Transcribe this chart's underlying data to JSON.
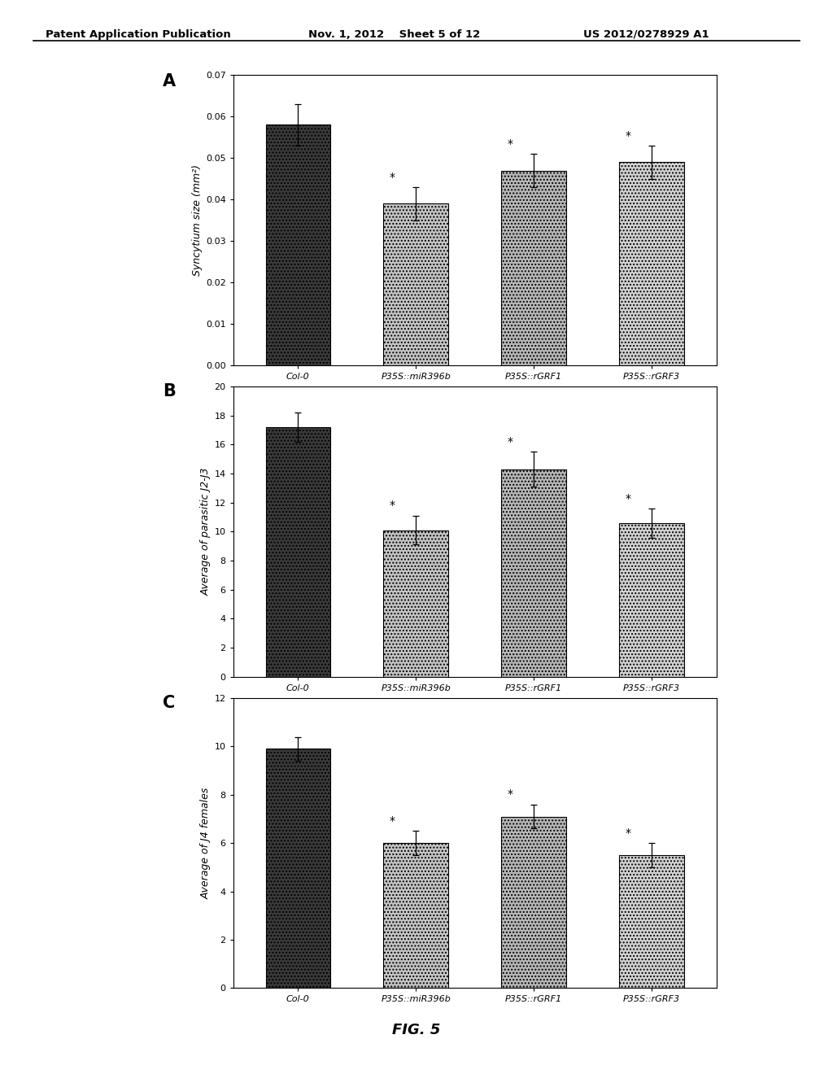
{
  "panel_A": {
    "label": "A",
    "categories": [
      "Col-0",
      "P35S::miR396b",
      "P35S::rGRF1",
      "P35S::rGRF3"
    ],
    "values": [
      0.058,
      0.039,
      0.047,
      0.049
    ],
    "errors": [
      0.005,
      0.004,
      0.004,
      0.004
    ],
    "ylabel": "Syncytium size (mm²)",
    "ylim": [
      0,
      0.07
    ],
    "yticks": [
      0,
      0.01,
      0.02,
      0.03,
      0.04,
      0.05,
      0.06,
      0.07
    ],
    "sig": [
      false,
      true,
      true,
      true
    ]
  },
  "panel_B": {
    "label": "B",
    "categories": [
      "Col-0",
      "P35S::miR396b",
      "P35S::rGRF1",
      "P35S::rGRF3"
    ],
    "values": [
      17.2,
      10.1,
      14.3,
      10.6
    ],
    "errors": [
      1.0,
      1.0,
      1.2,
      1.0
    ],
    "ylabel": "Average of parasitic J2-J3",
    "ylim": [
      0,
      20
    ],
    "yticks": [
      0,
      2,
      4,
      6,
      8,
      10,
      12,
      14,
      16,
      18,
      20
    ],
    "sig": [
      false,
      true,
      true,
      true
    ]
  },
  "panel_C": {
    "label": "C",
    "categories": [
      "Col-0",
      "P35S::miR396b",
      "P35S::rGRF1",
      "P35S::rGRF3"
    ],
    "values": [
      9.9,
      6.0,
      7.1,
      5.5
    ],
    "errors": [
      0.5,
      0.5,
      0.5,
      0.5
    ],
    "ylabel": "Average of J4 females",
    "ylim": [
      0,
      12
    ],
    "yticks": [
      0,
      2,
      4,
      6,
      8,
      10,
      12
    ],
    "sig": [
      false,
      true,
      true,
      true
    ]
  },
  "figure_caption": "FIG. 5",
  "header_left": "Patent Application Publication",
  "header_mid": "Nov. 1, 2012    Sheet 5 of 12",
  "header_right": "US 2012/0278929 A1",
  "background_color": "#ffffff",
  "bar_edgecolor": "#000000",
  "bar0_color": "#3a3a3a",
  "bar1_color": "#c8c8c8",
  "bar2_color": "#b0b0b0",
  "bar3_color": "#d0d0d0"
}
